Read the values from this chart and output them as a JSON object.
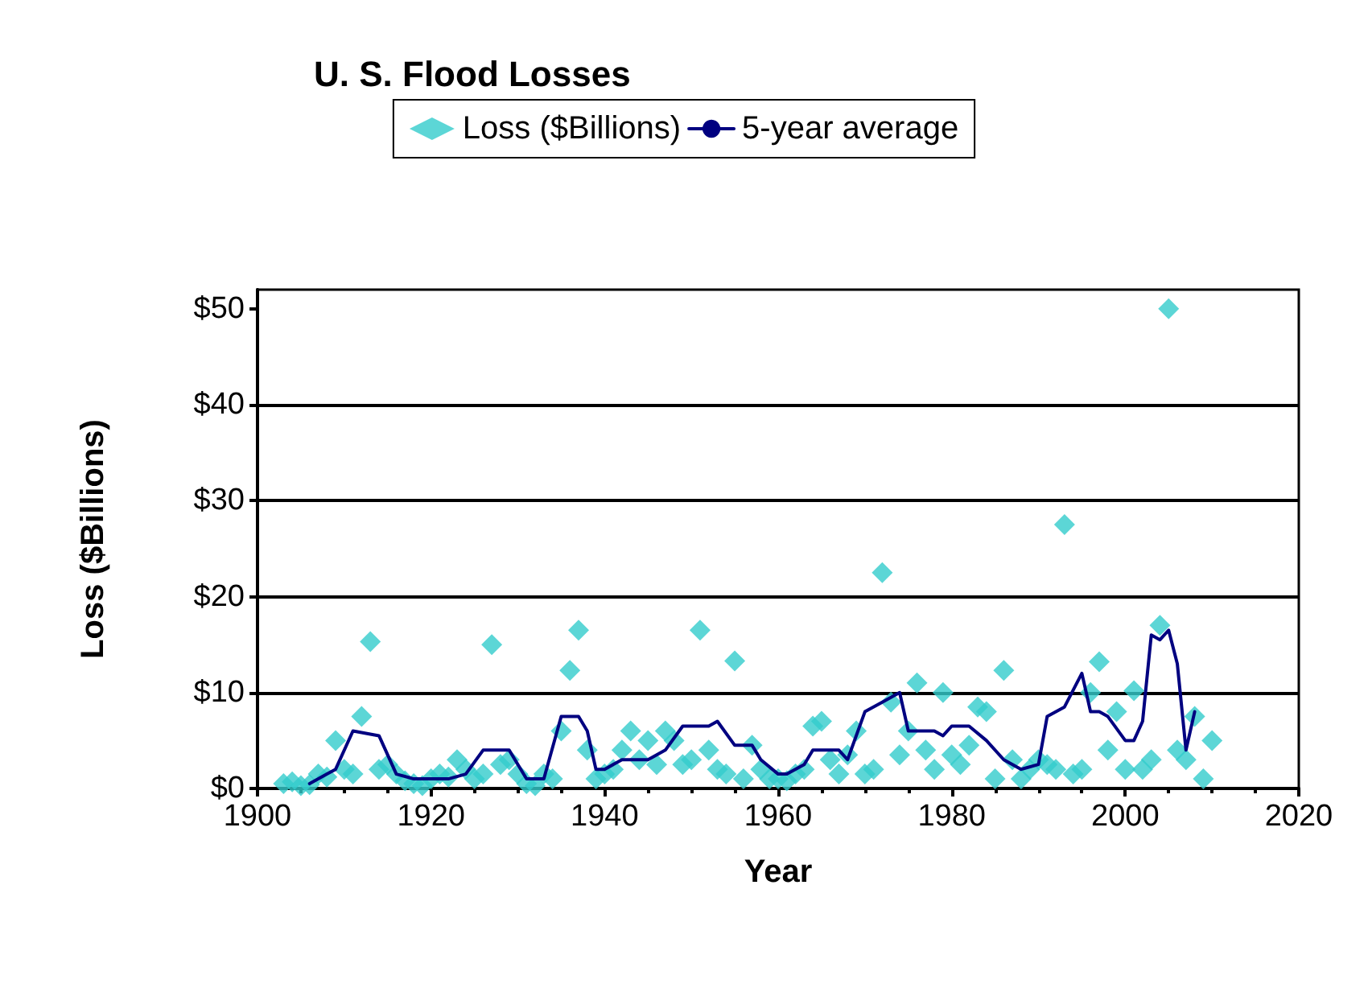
{
  "chart_data": {
    "type": "scatter",
    "title": "U. S. Flood Losses",
    "xlabel": "Year",
    "ylabel": "Loss ($Billions)",
    "xlim": [
      1900,
      2020
    ],
    "xticks": [
      1900,
      1920,
      1940,
      1960,
      1980,
      2000,
      2020
    ],
    "ylim": [
      0,
      52
    ],
    "yticks": [
      {
        "value": 0,
        "label": "$0"
      },
      {
        "value": 10,
        "label": "$10"
      },
      {
        "value": 20,
        "label": "$20"
      },
      {
        "value": 30,
        "label": "$30"
      },
      {
        "value": 40,
        "label": "$40"
      },
      {
        "value": 50,
        "label": "$50"
      }
    ],
    "grid": "y",
    "legend": "top",
    "marker": "diamond",
    "series": [
      {
        "name": "Loss ($Billions)",
        "color": "#33cccc",
        "x": [
          1903,
          1904,
          1905,
          1906,
          1907,
          1908,
          1909,
          1910,
          1911,
          1912,
          1913,
          1914,
          1915,
          1916,
          1917,
          1918,
          1919,
          1920,
          1921,
          1922,
          1923,
          1924,
          1925,
          1926,
          1927,
          1928,
          1929,
          1930,
          1931,
          1932,
          1933,
          1934,
          1935,
          1936,
          1937,
          1938,
          1939,
          1940,
          1941,
          1942,
          1943,
          1944,
          1945,
          1946,
          1947,
          1948,
          1949,
          1950,
          1951,
          1952,
          1953,
          1954,
          1955,
          1956,
          1957,
          1958,
          1959,
          1960,
          1961,
          1962,
          1963,
          1964,
          1965,
          1966,
          1967,
          1968,
          1969,
          1970,
          1971,
          1972,
          1973,
          1974,
          1975,
          1976,
          1977,
          1978,
          1979,
          1980,
          1981,
          1982,
          1983,
          1984,
          1985,
          1986,
          1987,
          1988,
          1989,
          1990,
          1991,
          1992,
          1993,
          1994,
          1995,
          1996,
          1997,
          1998,
          1999,
          2000,
          2001,
          2002,
          2003,
          2004,
          2005,
          2006,
          2007,
          2008,
          2009,
          2010
        ],
        "values": [
          0.5,
          0.7,
          0.3,
          0.4,
          1.5,
          1.2,
          5,
          2,
          1.5,
          7.5,
          15.3,
          2,
          2.5,
          1.5,
          0.8,
          0.5,
          0.3,
          1,
          1.5,
          1.2,
          3,
          2,
          1,
          1.5,
          15,
          2.5,
          3,
          1.5,
          0.5,
          0.3,
          1.5,
          1,
          6,
          12.3,
          16.5,
          4,
          1,
          1.5,
          2,
          4,
          6,
          3,
          5,
          2.5,
          6,
          5,
          2.5,
          3,
          16.5,
          4,
          2,
          1.5,
          13.3,
          1,
          4.5,
          2,
          1,
          1,
          0.8,
          1.5,
          2,
          6.5,
          7,
          3,
          1.5,
          3.5,
          6,
          1.5,
          2,
          22.5,
          9,
          3.5,
          6,
          11,
          4,
          2,
          10,
          3.5,
          2.5,
          4.5,
          8.5,
          8,
          1,
          12.3,
          3,
          1,
          2,
          3,
          2.5,
          2,
          27.5,
          1.5,
          2,
          10,
          13.2,
          4,
          8,
          2,
          10.2,
          2,
          3,
          17,
          50,
          4,
          3,
          7.5,
          1,
          5
        ]
      },
      {
        "name": "5-year average",
        "type": "line",
        "color": "#000080",
        "marker": "none",
        "x": [
          1906,
          1908,
          1909,
          1911,
          1914,
          1916,
          1918,
          1922,
          1924,
          1926,
          1929,
          1931,
          1933,
          1935,
          1937,
          1938,
          1939,
          1940,
          1942,
          1945,
          1947,
          1949,
          1952,
          1953,
          1955,
          1957,
          1958,
          1960,
          1961,
          1963,
          1964,
          1967,
          1968,
          1970,
          1972,
          1974,
          1975,
          1978,
          1979,
          1980,
          1982,
          1984,
          1986,
          1988,
          1990,
          1991,
          1993,
          1995,
          1996,
          1997,
          1998,
          2000,
          2001,
          2002,
          2003,
          2004,
          2005,
          2006,
          2007,
          2008
        ],
        "values": [
          0.5,
          1.5,
          2,
          6,
          5.5,
          1.5,
          1,
          1,
          1.5,
          4,
          4,
          1,
          1,
          7.5,
          7.5,
          6,
          2,
          2,
          3,
          3,
          4,
          6.5,
          6.5,
          7,
          4.5,
          4.5,
          3,
          1.5,
          1.5,
          2.5,
          4,
          4,
          3,
          8,
          9,
          10,
          6,
          6,
          5.5,
          6.5,
          6.5,
          5,
          3,
          2,
          2.5,
          7.5,
          8.5,
          12,
          8,
          8,
          7.5,
          5,
          5,
          7,
          16,
          15.5,
          16.5,
          13,
          4,
          8
        ]
      }
    ]
  }
}
